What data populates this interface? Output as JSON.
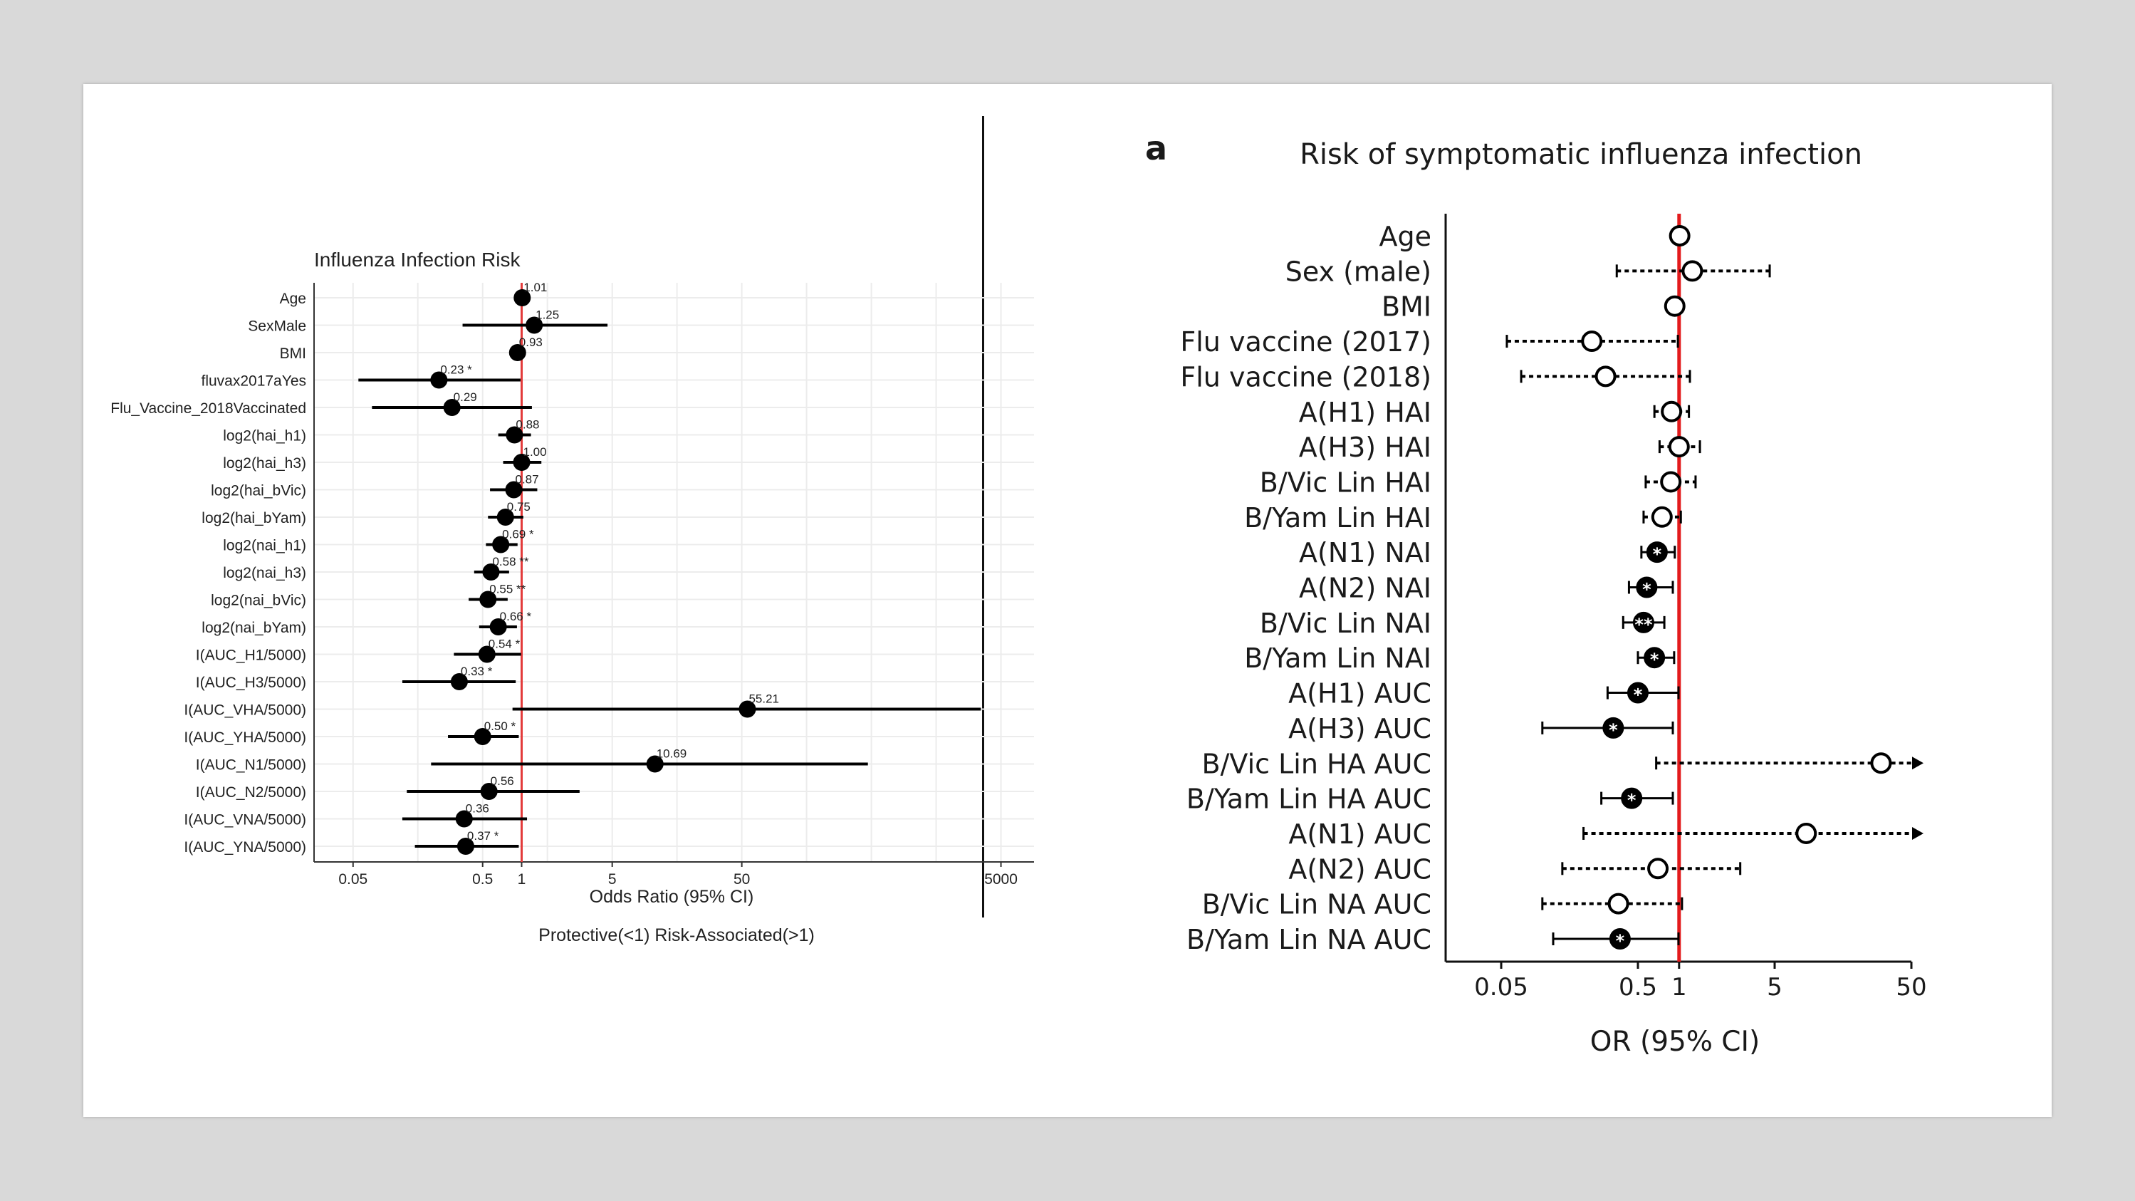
{
  "left_chart": {
    "chart_data": {
      "type": "forest",
      "title": "Influenza Infection Risk",
      "xlabel": "Odds Ratio (95% CI)",
      "caption": "Protective(<1) Risk-Associated(>1)",
      "xscale": "log",
      "xlim": [
        0.025,
        9000
      ],
      "ticks": [
        0.05,
        0.5,
        1,
        5,
        50,
        5000
      ],
      "tick_labels": [
        "0.05",
        "0.5",
        "1",
        "5",
        "50",
        "5000"
      ],
      "reference_line": 1,
      "reference_color": "#e33b3b",
      "rows": [
        {
          "label": "Age",
          "or": 1.01,
          "lo": 0.98,
          "hi": 1.04,
          "text": "1.01"
        },
        {
          "label": "SexMale",
          "or": 1.25,
          "lo": 0.35,
          "hi": 4.6,
          "text": "1.25"
        },
        {
          "label": "BMI",
          "or": 0.93,
          "lo": 0.86,
          "hi": 1.0,
          "text": "0.93"
        },
        {
          "label": "fluvax2017aYes",
          "or": 0.23,
          "lo": 0.055,
          "hi": 0.98,
          "text": "0.23 *"
        },
        {
          "label": "Flu_Vaccine_2018Vaccinated",
          "or": 0.29,
          "lo": 0.07,
          "hi": 1.2,
          "text": "0.29"
        },
        {
          "label": "log2(hai_h1)",
          "or": 0.88,
          "lo": 0.66,
          "hi": 1.18,
          "text": "0.88"
        },
        {
          "label": "log2(hai_h3)",
          "or": 1.0,
          "lo": 0.72,
          "hi": 1.42,
          "text": "1.00"
        },
        {
          "label": "log2(hai_bVic)",
          "or": 0.87,
          "lo": 0.57,
          "hi": 1.32,
          "text": "0.87"
        },
        {
          "label": "log2(hai_bYam)",
          "or": 0.75,
          "lo": 0.55,
          "hi": 1.03,
          "text": "0.75"
        },
        {
          "label": "log2(nai_h1)",
          "or": 0.69,
          "lo": 0.53,
          "hi": 0.93,
          "text": "0.69 *"
        },
        {
          "label": "log2(nai_h3)",
          "or": 0.58,
          "lo": 0.43,
          "hi": 0.8,
          "text": "0.58 **"
        },
        {
          "label": "log2(nai_bVic)",
          "or": 0.55,
          "lo": 0.39,
          "hi": 0.78,
          "text": "0.55 **"
        },
        {
          "label": "log2(nai_bYam)",
          "or": 0.66,
          "lo": 0.47,
          "hi": 0.92,
          "text": "0.66 *"
        },
        {
          "label": "I(AUC_H1/5000)",
          "or": 0.54,
          "lo": 0.3,
          "hi": 0.99,
          "text": "0.54 *"
        },
        {
          "label": "I(AUC_H3/5000)",
          "or": 0.33,
          "lo": 0.12,
          "hi": 0.9,
          "text": "0.33 *"
        },
        {
          "label": "I(AUC_VHA/5000)",
          "or": 55.21,
          "lo": 0.85,
          "hi": 3500,
          "text": "55.21"
        },
        {
          "label": "I(AUC_YHA/5000)",
          "or": 0.5,
          "lo": 0.27,
          "hi": 0.95,
          "text": "0.50 *"
        },
        {
          "label": "I(AUC_N1/5000)",
          "or": 10.69,
          "lo": 0.2,
          "hi": 470,
          "text": "10.69"
        },
        {
          "label": "I(AUC_N2/5000)",
          "or": 0.56,
          "lo": 0.13,
          "hi": 2.8,
          "text": "0.56"
        },
        {
          "label": "I(AUC_VNA/5000)",
          "or": 0.36,
          "lo": 0.12,
          "hi": 1.1,
          "text": "0.36"
        },
        {
          "label": "I(AUC_YNA/5000)",
          "or": 0.37,
          "lo": 0.15,
          "hi": 0.95,
          "text": "0.37 *"
        }
      ]
    }
  },
  "right_chart": {
    "panel_letter": "a",
    "chart_data": {
      "type": "forest",
      "title": "Risk of symptomatic influenza infection",
      "xlabel": "OR (95% CI)",
      "xscale": "log",
      "xlim": [
        0.025,
        50
      ],
      "ticks": [
        0.05,
        0.5,
        1,
        5,
        50
      ],
      "tick_labels": [
        "0.05",
        "0.5",
        "1",
        "5",
        "50"
      ],
      "reference_line": 1,
      "reference_color": "#e31a1c",
      "rows": [
        {
          "label": "Age",
          "or": 1.01,
          "lo": 1.01,
          "hi": 1.01,
          "sig": false,
          "stars": "",
          "line": "solid",
          "arrow": false
        },
        {
          "label": "Sex (male)",
          "or": 1.25,
          "lo": 0.35,
          "hi": 4.6,
          "sig": false,
          "stars": "",
          "line": "dotted",
          "arrow": false
        },
        {
          "label": "BMI",
          "or": 0.93,
          "lo": 0.93,
          "hi": 0.93,
          "sig": false,
          "stars": "",
          "line": "solid",
          "arrow": false
        },
        {
          "label": "Flu vaccine (2017)",
          "or": 0.23,
          "lo": 0.055,
          "hi": 0.98,
          "sig": false,
          "stars": "",
          "line": "dotted",
          "arrow": false
        },
        {
          "label": "Flu vaccine (2018)",
          "or": 0.29,
          "lo": 0.07,
          "hi": 1.2,
          "sig": false,
          "stars": "",
          "line": "dotted",
          "arrow": false
        },
        {
          "label": "A(H1) HAI",
          "or": 0.88,
          "lo": 0.66,
          "hi": 1.18,
          "sig": false,
          "stars": "",
          "line": "dotted",
          "arrow": false
        },
        {
          "label": "A(H3) HAI",
          "or": 1.0,
          "lo": 0.72,
          "hi": 1.42,
          "sig": false,
          "stars": "",
          "line": "dotted",
          "arrow": false
        },
        {
          "label": "B/Vic Lin HAI",
          "or": 0.87,
          "lo": 0.57,
          "hi": 1.32,
          "sig": false,
          "stars": "",
          "line": "dotted",
          "arrow": false
        },
        {
          "label": "B/Yam Lin HAI",
          "or": 0.75,
          "lo": 0.55,
          "hi": 1.03,
          "sig": false,
          "stars": "",
          "line": "dotted",
          "arrow": false
        },
        {
          "label": "A(N1) NAI",
          "or": 0.69,
          "lo": 0.53,
          "hi": 0.93,
          "sig": true,
          "stars": "*",
          "line": "solid",
          "arrow": false
        },
        {
          "label": "A(N2) NAI",
          "or": 0.58,
          "lo": 0.43,
          "hi": 0.9,
          "sig": true,
          "stars": "*",
          "line": "solid",
          "arrow": false
        },
        {
          "label": "B/Vic Lin NAI",
          "or": 0.55,
          "lo": 0.39,
          "hi": 0.78,
          "sig": true,
          "stars": "**",
          "line": "solid",
          "arrow": false
        },
        {
          "label": "B/Yam Lin NAI",
          "or": 0.66,
          "lo": 0.5,
          "hi": 0.92,
          "sig": true,
          "stars": "*",
          "line": "solid",
          "arrow": false
        },
        {
          "label": "A(H1) AUC",
          "or": 0.5,
          "lo": 0.3,
          "hi": 0.99,
          "sig": true,
          "stars": "*",
          "line": "solid",
          "arrow": false
        },
        {
          "label": "A(H3) AUC",
          "or": 0.33,
          "lo": 0.1,
          "hi": 0.9,
          "sig": true,
          "stars": "*",
          "line": "solid",
          "arrow": false
        },
        {
          "label": "B/Vic Lin HA AUC",
          "or": 30,
          "lo": 0.68,
          "hi": 60,
          "sig": false,
          "stars": "",
          "line": "dotted",
          "arrow": true
        },
        {
          "label": "B/Yam Lin HA AUC",
          "or": 0.45,
          "lo": 0.27,
          "hi": 0.9,
          "sig": true,
          "stars": "*",
          "line": "solid",
          "arrow": false
        },
        {
          "label": "A(N1) AUC",
          "or": 8.5,
          "lo": 0.2,
          "hi": 60,
          "sig": false,
          "stars": "",
          "line": "dotted",
          "arrow": true
        },
        {
          "label": "A(N2) AUC",
          "or": 0.7,
          "lo": 0.14,
          "hi": 2.8,
          "sig": false,
          "stars": "",
          "line": "dotted",
          "arrow": false
        },
        {
          "label": "B/Vic Lin NA AUC",
          "or": 0.36,
          "lo": 0.1,
          "hi": 1.05,
          "sig": false,
          "stars": "",
          "line": "dotted",
          "arrow": false
        },
        {
          "label": "B/Yam Lin NA AUC",
          "or": 0.37,
          "lo": 0.12,
          "hi": 0.99,
          "sig": true,
          "stars": "*",
          "line": "solid",
          "arrow": false
        }
      ]
    }
  }
}
